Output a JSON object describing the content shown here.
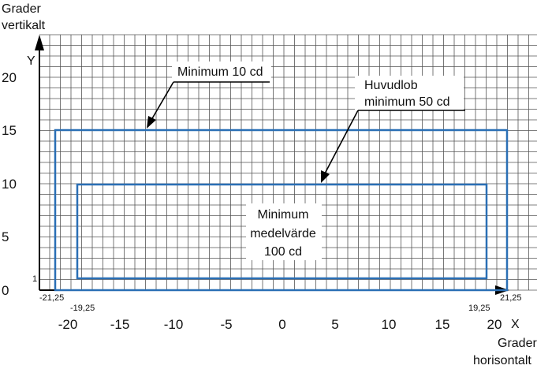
{
  "diagram": {
    "y_axis_title": [
      "Grader",
      "vertikalt"
    ],
    "x_axis_title": [
      "Grader",
      "horisontalt"
    ],
    "x_axis_letter": "X",
    "y_axis_letter": "Y",
    "x_ticks": [
      "-20",
      "-15",
      "-10",
      "-5",
      "0",
      "5",
      "10",
      "15",
      "20"
    ],
    "y_ticks": [
      "0",
      "5",
      "10",
      "15",
      "20"
    ],
    "y_marker_1": "1",
    "boundary_labels": {
      "outer_left": "-21,25",
      "inner_left": "-19,25",
      "inner_right": "19,25",
      "outer_right": "21,25"
    },
    "callouts": {
      "outer": "Minimum 10 cd",
      "main_beam": [
        "Huvudlob",
        "minimum 50 cd"
      ],
      "inner": [
        "Minimum",
        "medelvärde",
        "100 cd"
      ]
    },
    "colors": {
      "grid": "#555555",
      "rect": "#2a6fb5",
      "text": "#111111"
    }
  },
  "chart_data": {
    "type": "diagram",
    "xlim": [
      -21.25,
      21.25
    ],
    "ylim": [
      0,
      22
    ],
    "regions": [
      {
        "label": "Minimum 10 cd",
        "x": [
          -21.25,
          21.25
        ],
        "y": [
          0,
          15
        ]
      },
      {
        "label": "Huvudlob minimum 50 cd",
        "x": [
          -19.25,
          19.25
        ],
        "y": [
          1,
          10
        ]
      }
    ]
  }
}
